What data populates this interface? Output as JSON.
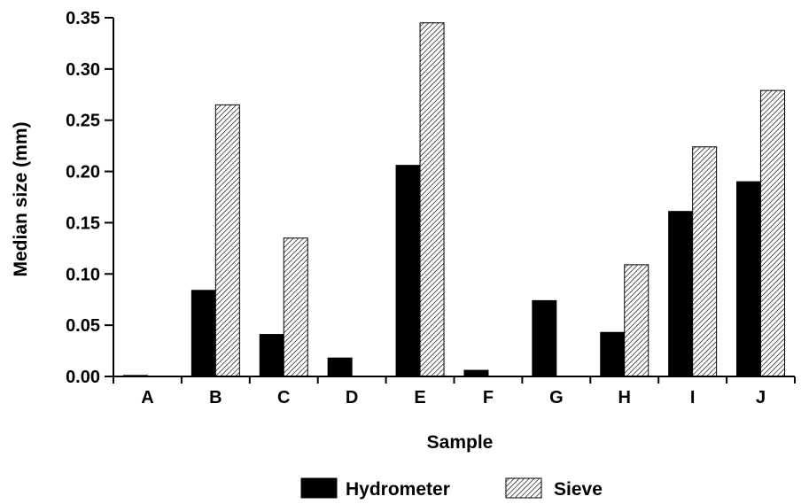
{
  "chart_data": {
    "type": "bar",
    "xlabel": "Sample",
    "ylabel": "Median size (mm)",
    "categories": [
      "A",
      "B",
      "C",
      "D",
      "E",
      "F",
      "G",
      "H",
      "I",
      "J"
    ],
    "yticks": [
      "0.00",
      "0.05",
      "0.10",
      "0.15",
      "0.20",
      "0.25",
      "0.30",
      "0.35"
    ],
    "ylim": [
      0,
      0.35
    ],
    "grid": false,
    "legend_position": "bottom",
    "series": [
      {
        "name": "Hydrometer",
        "fill": "solid",
        "color": "#000000",
        "values": [
          0.001,
          0.084,
          0.041,
          0.018,
          0.206,
          0.006,
          0.074,
          0.043,
          0.161,
          0.19
        ]
      },
      {
        "name": "Sieve",
        "fill": "hatched",
        "color": "#000000",
        "values": [
          null,
          0.265,
          0.135,
          null,
          0.345,
          null,
          null,
          0.109,
          0.224,
          0.279
        ]
      }
    ]
  }
}
